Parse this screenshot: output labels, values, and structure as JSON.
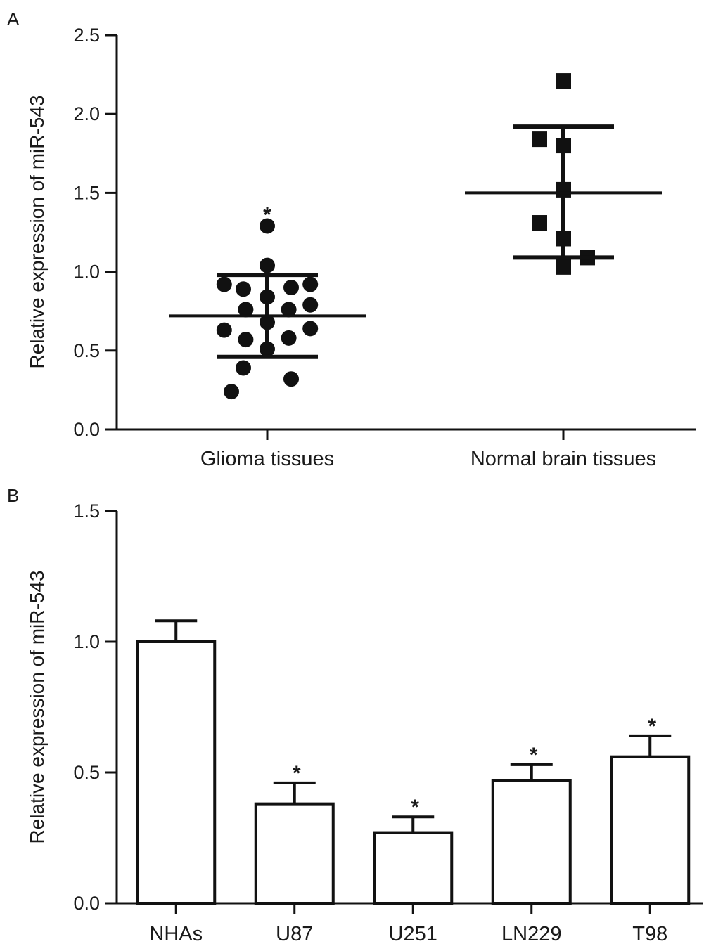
{
  "colors": {
    "ink": "#111111",
    "background": "#ffffff"
  },
  "chart_data": [
    {
      "panel_label": "A",
      "type": "scatter",
      "ylabel": "Relative expression of miR-543",
      "xlabel": "",
      "ylim": [
        0,
        2.5
      ],
      "yticks": [
        "0.0",
        "0.5",
        "1.0",
        "1.5",
        "2.0",
        "2.5"
      ],
      "grid": false,
      "categories": [
        "Glioma tissues",
        "Normal brain tissues"
      ],
      "groups": [
        {
          "category": "Glioma tissues",
          "marker": "circle",
          "mean": 0.72,
          "sd_low": 0.46,
          "sd_high": 0.98,
          "annotation": "*",
          "points": [
            {
              "offset": -3,
              "y": 0.24
            },
            {
              "offset": -2,
              "y": 0.39
            },
            {
              "offset": 2,
              "y": 0.32
            },
            {
              "offset": 0,
              "y": 0.51
            },
            {
              "offset": -1.8,
              "y": 0.57
            },
            {
              "offset": 1.8,
              "y": 0.58
            },
            {
              "offset": -3.6,
              "y": 0.63
            },
            {
              "offset": 3.6,
              "y": 0.64
            },
            {
              "offset": 0,
              "y": 0.68
            },
            {
              "offset": -1.8,
              "y": 0.76
            },
            {
              "offset": 1.8,
              "y": 0.76
            },
            {
              "offset": 3.6,
              "y": 0.79
            },
            {
              "offset": 0,
              "y": 0.84
            },
            {
              "offset": -2,
              "y": 0.89
            },
            {
              "offset": 2,
              "y": 0.9
            },
            {
              "offset": -3.6,
              "y": 0.92
            },
            {
              "offset": 3.6,
              "y": 0.92
            },
            {
              "offset": 0,
              "y": 1.04
            },
            {
              "offset": 0,
              "y": 1.29
            }
          ]
        },
        {
          "category": "Normal brain tissues",
          "marker": "square",
          "mean": 1.5,
          "sd_low": 1.09,
          "sd_high": 1.92,
          "annotation": "",
          "points": [
            {
              "offset": 0,
              "y": 1.03
            },
            {
              "offset": 2,
              "y": 1.09
            },
            {
              "offset": 0,
              "y": 1.21
            },
            {
              "offset": -2,
              "y": 1.31
            },
            {
              "offset": 0,
              "y": 1.52
            },
            {
              "offset": 0,
              "y": 1.8
            },
            {
              "offset": -2,
              "y": 1.84
            },
            {
              "offset": 0,
              "y": 2.21
            }
          ]
        }
      ]
    },
    {
      "panel_label": "B",
      "type": "bar",
      "ylabel": "Relative expression of miR-543",
      "xlabel": "",
      "ylim": [
        0,
        1.5
      ],
      "yticks": [
        "0.0",
        "0.5",
        "1.0",
        "1.5"
      ],
      "grid": false,
      "categories": [
        "NHAs",
        "U87",
        "U251",
        "LN229",
        "T98"
      ],
      "values": [
        1.0,
        0.38,
        0.27,
        0.47,
        0.56
      ],
      "errors": [
        0.08,
        0.08,
        0.06,
        0.06,
        0.08
      ],
      "annotations": [
        "",
        "*",
        "*",
        "*",
        "*"
      ]
    }
  ]
}
